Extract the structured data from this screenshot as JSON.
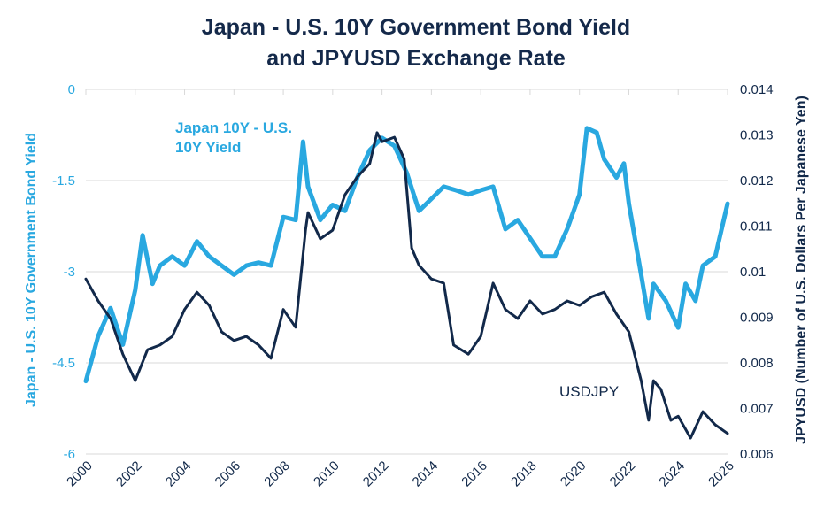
{
  "chart_data": {
    "type": "line",
    "title_lines": [
      "Japan - U.S. 10Y Government Bond Yield",
      "and JPYUSD Exchange Rate"
    ],
    "xlabel": "",
    "ylabel_left": "Japan - U.S. 10Y Government Bond Yield",
    "ylabel_right": "JPYUSD (Number of U.S. Dollars Per Japanese Yen)",
    "xlim": [
      2000,
      2026
    ],
    "ylim_left": [
      -6,
      0
    ],
    "ylim_right": [
      0.006,
      0.014
    ],
    "x_ticks": [
      "2000",
      "2002",
      "2004",
      "2006",
      "2008",
      "2010",
      "2012",
      "2014",
      "2016",
      "2018",
      "2020",
      "2022",
      "2024",
      "2026"
    ],
    "y_ticks_left": [
      "0",
      "-1.5",
      "-3",
      "-4.5",
      "-6"
    ],
    "y_ticks_right": [
      "0.014",
      "0.013",
      "0.012",
      "0.011",
      "0.01",
      "0.009",
      "0.008",
      "0.007",
      "0.006"
    ],
    "grid": "horizontal",
    "colors": {
      "yield": "#29a8e0",
      "fx": "#12294a",
      "grid": "#e6e6e6",
      "title": "#14294a"
    },
    "series": [
      {
        "name": "Japan 10Y - U.S. 10Y Yield",
        "label_lines": [
          "Japan 10Y - U.S.",
          "10Y Yield"
        ],
        "axis": "left",
        "x": [
          2000,
          2000.5,
          2001,
          2001.5,
          2002,
          2002.3,
          2002.7,
          2003,
          2003.5,
          2004,
          2004.5,
          2005,
          2005.5,
          2006,
          2006.5,
          2007,
          2007.5,
          2008,
          2008.5,
          2008.8,
          2009,
          2009.5,
          2010,
          2010.5,
          2011,
          2011.5,
          2012,
          2012.5,
          2013,
          2013.5,
          2014,
          2014.5,
          2015,
          2015.5,
          2016,
          2016.5,
          2017,
          2017.5,
          2018,
          2018.5,
          2019,
          2019.5,
          2020,
          2020.3,
          2020.7,
          2021,
          2021.5,
          2021.8,
          2022,
          2022.5,
          2022.8,
          2023,
          2023.5,
          2024,
          2024.3,
          2024.7,
          2025,
          2025.5,
          2026
        ],
        "y": [
          -4.8,
          -4.06,
          -3.6,
          -4.2,
          -3.3,
          -2.4,
          -3.2,
          -2.9,
          -2.75,
          -2.9,
          -2.5,
          -2.75,
          -2.9,
          -3.05,
          -2.9,
          -2.85,
          -2.9,
          -2.1,
          -2.15,
          -0.86,
          -1.6,
          -2.15,
          -1.9,
          -2.0,
          -1.45,
          -1.0,
          -0.8,
          -0.93,
          -1.37,
          -2.0,
          -1.8,
          -1.6,
          -1.66,
          -1.73,
          -1.66,
          -1.6,
          -2.3,
          -2.15,
          -2.45,
          -2.75,
          -2.75,
          -2.3,
          -1.73,
          -0.64,
          -0.71,
          -1.15,
          -1.45,
          -1.22,
          -1.88,
          -3.05,
          -3.77,
          -3.2,
          -3.48,
          -3.92,
          -3.2,
          -3.48,
          -2.9,
          -2.75,
          -1.88
        ]
      },
      {
        "name": "USDJPY",
        "label_lines": [
          "USDJPY"
        ],
        "axis": "right",
        "x": [
          2000,
          2000.5,
          2001,
          2001.5,
          2002,
          2002.5,
          2003,
          2003.5,
          2004,
          2004.5,
          2005,
          2005.5,
          2006,
          2006.5,
          2007,
          2007.5,
          2008,
          2008.5,
          2008.9,
          2009,
          2009.5,
          2010,
          2010.5,
          2011,
          2011.5,
          2011.8,
          2012,
          2012.5,
          2012.9,
          2013.2,
          2013.5,
          2014,
          2014.5,
          2014.9,
          2015.5,
          2016,
          2016.5,
          2017,
          2017.5,
          2018,
          2018.5,
          2019,
          2019.5,
          2020,
          2020.5,
          2021,
          2021.5,
          2022,
          2022.5,
          2022.8,
          2023,
          2023.3,
          2023.7,
          2024,
          2024.5,
          2025,
          2025.5,
          2026
        ],
        "y": [
          0.00984,
          0.00936,
          0.00897,
          0.00819,
          0.00761,
          0.00829,
          0.00839,
          0.00858,
          0.00917,
          0.00955,
          0.00926,
          0.00868,
          0.00849,
          0.00858,
          0.00839,
          0.0081,
          0.00917,
          0.00878,
          0.01091,
          0.0113,
          0.01072,
          0.01091,
          0.01169,
          0.01208,
          0.01237,
          0.01305,
          0.01285,
          0.01295,
          0.01247,
          0.01052,
          0.01014,
          0.00984,
          0.00975,
          0.00839,
          0.00819,
          0.00858,
          0.00975,
          0.00917,
          0.00897,
          0.00936,
          0.00907,
          0.00917,
          0.00936,
          0.00926,
          0.00945,
          0.00955,
          0.00907,
          0.00868,
          0.00761,
          0.00674,
          0.00761,
          0.00742,
          0.00674,
          0.00683,
          0.00635,
          0.00693,
          0.00664,
          0.00645
        ]
      }
    ]
  }
}
